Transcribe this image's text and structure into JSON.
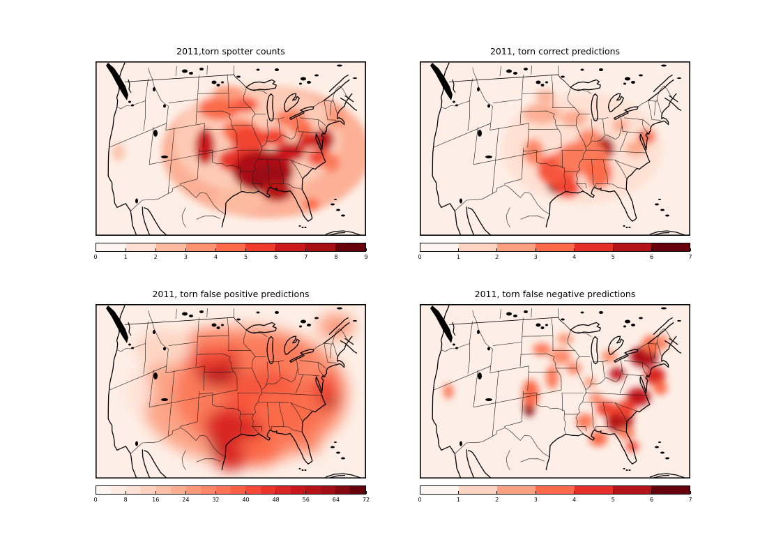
{
  "figure": {
    "background": "#ffffff"
  },
  "colormap": {
    "name": "Reds",
    "map_background": "#fdefe7",
    "anchors": [
      "#fff5f0",
      "#fee0d2",
      "#fcbba1",
      "#fc9272",
      "#fb6a4a",
      "#ef3b2c",
      "#cb181d",
      "#a50f15",
      "#67000d"
    ]
  },
  "chart_data": {
    "type": "heatmap",
    "layout": "2x2 grid of filled-contour maps over the continental United States, horizontal discrete Reds colorbar below each map",
    "projection": "Lambert-conformal style US map with state borders and coastlines",
    "panels": [
      {
        "id": "spotter-counts",
        "title": "2011,torn spotter counts",
        "colorbar": {
          "vmin": 0,
          "vmax": 9,
          "segments": 9,
          "ticks": [
            "0",
            "1",
            "2",
            "3",
            "4",
            "5",
            "6",
            "7",
            "8",
            "9"
          ]
        },
        "blur": 5,
        "hotspots": [
          [
            245,
            130,
            150,
            95,
            0.28
          ],
          [
            232,
            112,
            120,
            78,
            0.2
          ],
          [
            206,
            200,
            34,
            20,
            0.25
          ],
          [
            33,
            130,
            9,
            13,
            0.22
          ],
          [
            178,
            68,
            30,
            16,
            0.5
          ],
          [
            215,
            62,
            18,
            11,
            0.55
          ],
          [
            190,
            45,
            22,
            10,
            0.35
          ],
          [
            208,
            100,
            26,
            16,
            0.5
          ],
          [
            221,
            112,
            28,
            18,
            0.6
          ],
          [
            202,
            142,
            26,
            17,
            0.65
          ],
          [
            157,
            122,
            14,
            26,
            0.75
          ],
          [
            240,
            157,
            44,
            30,
            0.85
          ],
          [
            248,
            170,
            26,
            20,
            0.9
          ],
          [
            260,
            185,
            22,
            16,
            0.82
          ],
          [
            279,
            130,
            22,
            14,
            0.75
          ],
          [
            256,
            108,
            18,
            12,
            0.6
          ],
          [
            306,
            113,
            16,
            12,
            0.7
          ],
          [
            295,
            95,
            16,
            11,
            0.5
          ],
          [
            280,
            82,
            22,
            13,
            0.45
          ],
          [
            328,
            112,
            14,
            16,
            0.8
          ],
          [
            322,
            138,
            18,
            12,
            0.6
          ],
          [
            345,
            80,
            13,
            17,
            0.35
          ],
          [
            310,
            205,
            11,
            9,
            0.5
          ],
          [
            338,
            145,
            12,
            14,
            0.45
          ]
        ]
      },
      {
        "id": "correct-predictions",
        "title": "2011, torn correct predictions",
        "colorbar": {
          "vmin": 0,
          "vmax": 7,
          "segments": 7,
          "ticks": [
            "0",
            "1",
            "2",
            "3",
            "4",
            "5",
            "6",
            "7"
          ]
        },
        "blur": 5,
        "hotspots": [
          [
            233,
            125,
            115,
            80,
            0.12
          ],
          [
            202,
            170,
            22,
            22,
            0.95
          ],
          [
            198,
            156,
            30,
            24,
            0.55
          ],
          [
            212,
            182,
            18,
            14,
            0.6
          ],
          [
            264,
            125,
            15,
            17,
            0.85
          ],
          [
            233,
            138,
            38,
            24,
            0.45
          ],
          [
            256,
            160,
            20,
            22,
            0.5
          ],
          [
            175,
            75,
            28,
            15,
            0.28
          ],
          [
            221,
            82,
            18,
            12,
            0.3
          ],
          [
            180,
            50,
            14,
            9,
            0.28
          ],
          [
            325,
            108,
            13,
            11,
            0.5
          ],
          [
            310,
            125,
            15,
            11,
            0.3
          ],
          [
            163,
            130,
            15,
            19,
            0.4
          ],
          [
            244,
            108,
            17,
            11,
            0.4
          ],
          [
            288,
            92,
            12,
            9,
            0.3
          ],
          [
            247,
            130,
            20,
            12,
            0.45
          ]
        ]
      },
      {
        "id": "false-positive-predictions",
        "title": "2011, torn false positive predictions",
        "colorbar": {
          "vmin": 0,
          "vmax": 72,
          "segments": 18,
          "ticks": [
            "0",
            "8",
            "16",
            "24",
            "32",
            "40",
            "48",
            "56",
            "64",
            "72"
          ]
        },
        "blur": 10,
        "hotspots": [
          [
            213,
            130,
            150,
            100,
            0.32
          ],
          [
            233,
            128,
            120,
            85,
            0.45
          ],
          [
            194,
            200,
            30,
            26,
            0.97
          ],
          [
            200,
            178,
            44,
            32,
            0.7
          ],
          [
            175,
            92,
            30,
            26,
            0.8
          ],
          [
            163,
            70,
            42,
            20,
            0.6
          ],
          [
            165,
            50,
            36,
            15,
            0.42
          ],
          [
            334,
            136,
            13,
            15,
            0.85
          ],
          [
            326,
            118,
            20,
            20,
            0.6
          ],
          [
            240,
            130,
            52,
            36,
            0.55
          ],
          [
            272,
            155,
            46,
            30,
            0.5
          ],
          [
            345,
            32,
            26,
            18,
            0.35
          ],
          [
            97,
            62,
            42,
            26,
            0.16
          ],
          [
            60,
            125,
            20,
            30,
            0.1
          ],
          [
            308,
            204,
            14,
            10,
            0.45
          ],
          [
            233,
            212,
            32,
            20,
            0.5
          ],
          [
            312,
            92,
            22,
            18,
            0.4
          ],
          [
            194,
            222,
            24,
            16,
            0.7
          ]
        ]
      },
      {
        "id": "false-negative-predictions",
        "title": "2011, torn false negative predictions",
        "colorbar": {
          "vmin": 0,
          "vmax": 7,
          "segments": 7,
          "ticks": [
            "0",
            "1",
            "2",
            "3",
            "4",
            "5",
            "6",
            "7"
          ]
        },
        "blur": 5,
        "hotspots": [
          [
            157,
            146,
            8,
            15,
            0.95
          ],
          [
            159,
            128,
            12,
            20,
            0.5
          ],
          [
            322,
            75,
            20,
            15,
            0.85
          ],
          [
            332,
            58,
            13,
            13,
            0.5
          ],
          [
            348,
            55,
            9,
            11,
            0.4
          ],
          [
            337,
            103,
            15,
            13,
            0.7
          ],
          [
            314,
            133,
            17,
            13,
            0.78
          ],
          [
            345,
            120,
            10,
            10,
            0.5
          ],
          [
            287,
            168,
            19,
            17,
            0.82
          ],
          [
            296,
            150,
            14,
            12,
            0.6
          ],
          [
            268,
            150,
            15,
            11,
            0.6
          ],
          [
            283,
            100,
            11,
            9,
            0.78
          ],
          [
            256,
            193,
            13,
            11,
            0.5
          ],
          [
            237,
            168,
            13,
            11,
            0.45
          ],
          [
            190,
            105,
            9,
            17,
            0.45
          ],
          [
            202,
            75,
            15,
            11,
            0.4
          ],
          [
            175,
            65,
            13,
            9,
            0.45
          ],
          [
            221,
            92,
            11,
            9,
            0.4
          ],
          [
            41,
            125,
            7,
            11,
            0.45
          ],
          [
            305,
            204,
            9,
            8,
            0.6
          ],
          [
            244,
            112,
            9,
            7,
            0.35
          ],
          [
            272,
            75,
            11,
            9,
            0.4
          ],
          [
            208,
            50,
            12,
            8,
            0.35
          ],
          [
            253,
            135,
            10,
            8,
            0.4
          ],
          [
            296,
            185,
            12,
            9,
            0.45
          ]
        ]
      }
    ]
  }
}
